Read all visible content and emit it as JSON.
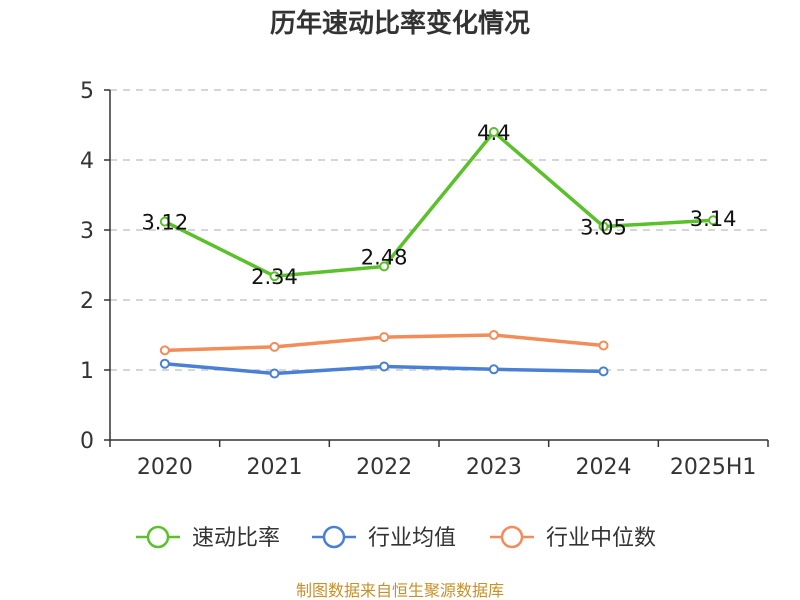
{
  "chart_data": {
    "type": "line",
    "title": "历年速动比率变化情况",
    "categories": [
      "2020",
      "2021",
      "2022",
      "2023",
      "2024",
      "2025H1"
    ],
    "ylim": [
      0,
      5
    ],
    "yticks": [
      "0",
      "1",
      "2",
      "3",
      "4",
      "5"
    ],
    "grid": true,
    "legend_position": "bottom",
    "series": [
      {
        "name": "速动比率",
        "color": "#5ac12a",
        "values": [
          3.12,
          2.34,
          2.48,
          4.4,
          3.05,
          3.14
        ],
        "labels": [
          "3.12",
          "2.34",
          "2.48",
          "4.4",
          "3.05",
          "3.14"
        ]
      },
      {
        "name": "行业均值",
        "color": "#4a7fd6",
        "values": [
          1.09,
          0.95,
          1.05,
          1.01,
          0.98,
          null
        ]
      },
      {
        "name": "行业中位数",
        "color": "#f28c58",
        "values": [
          1.28,
          1.33,
          1.47,
          1.5,
          1.35,
          null
        ]
      }
    ]
  },
  "footer": {
    "source": "制图数据来自恒生聚源数据库"
  }
}
